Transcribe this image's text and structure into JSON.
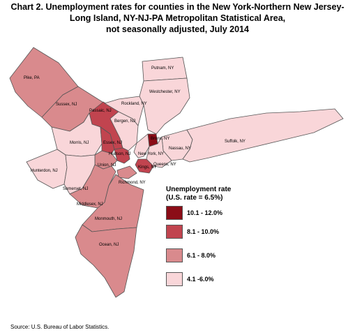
{
  "title": {
    "line1": "Chart 2. Unemployment rates for counties in the New York-Northern New Jersey-",
    "line2": "Long Island, NY-NJ-PA Metropolitan Statistical Area,",
    "line3": "not seasonally adjusted, July 2014"
  },
  "legend": {
    "title_line1": "Unemployment rate",
    "title_line2": "(U.S. rate = 6.5%)",
    "items": [
      {
        "label": "10.1 - 12.0%",
        "color": "#8b0d17"
      },
      {
        "label": "8.1 - 10.0%",
        "color": "#c1444f"
      },
      {
        "label": "6.1 - 8.0%",
        "color": "#d98a8d"
      },
      {
        "label": "4.1 -6.0%",
        "color": "#f9d6d9"
      }
    ]
  },
  "counties": [
    {
      "name": "Pike, PA",
      "class": "6.1 - 8.0%"
    },
    {
      "name": "Sussex, NJ",
      "class": "6.1 - 8.0%"
    },
    {
      "name": "Passaic, NJ",
      "class": "8.1 - 10.0%"
    },
    {
      "name": "Bergen, NJ",
      "class": "4.1 -6.0%"
    },
    {
      "name": "Rockland, NY",
      "class": "4.1 -6.0%"
    },
    {
      "name": "Putnam, NY",
      "class": "4.1 -6.0%"
    },
    {
      "name": "Westchester, NY",
      "class": "4.1 -6.0%"
    },
    {
      "name": "Bronx, NY",
      "class": "10.1 - 12.0%"
    },
    {
      "name": "Nassau, NY",
      "class": "4.1 -6.0%"
    },
    {
      "name": "Suffolk, NY",
      "class": "4.1 -6.0%"
    },
    {
      "name": "Morris, NJ",
      "class": "4.1 -6.0%"
    },
    {
      "name": "Essex, NJ",
      "class": "8.1 - 10.0%"
    },
    {
      "name": "Hudson, NJ",
      "class": "8.1 - 10.0%"
    },
    {
      "name": "New York, NY",
      "class": "4.1 -6.0%"
    },
    {
      "name": "Queens, NY",
      "class": "4.1 -6.0%"
    },
    {
      "name": "Kings, NY",
      "class": "8.1 - 10.0%"
    },
    {
      "name": "Union, NJ",
      "class": "6.1 - 8.0%"
    },
    {
      "name": "Hunterdon, NJ",
      "class": "4.1 -6.0%"
    },
    {
      "name": "Somerset, NJ",
      "class": "4.1 -6.0%"
    },
    {
      "name": "Richmond, NY",
      "class": "6.1 - 8.0%"
    },
    {
      "name": "Middlesex, NJ",
      "class": "6.1 - 8.0%"
    },
    {
      "name": "Monmouth, NJ",
      "class": "6.1 - 8.0%"
    },
    {
      "name": "Ocean, NJ",
      "class": "6.1 - 8.0%"
    }
  ],
  "source": "Source: U.S. Bureau of Labor Statistics."
}
